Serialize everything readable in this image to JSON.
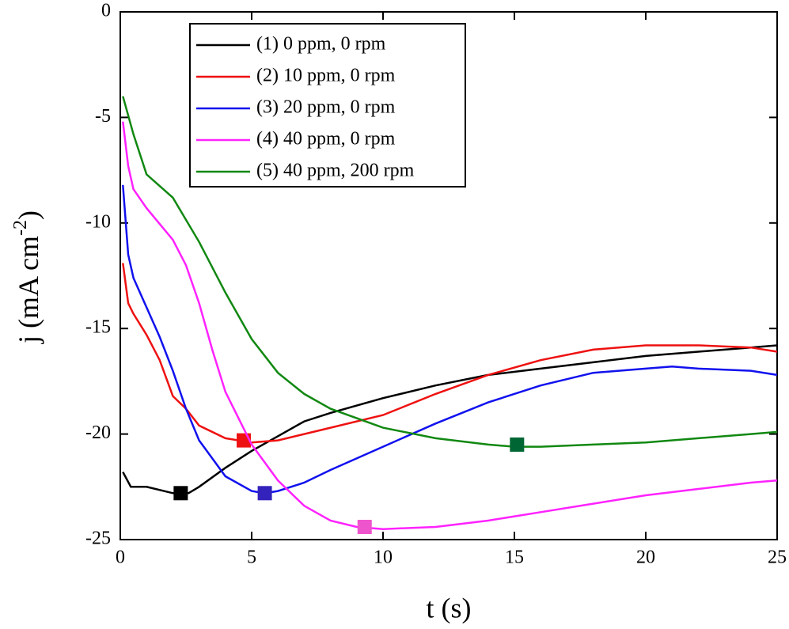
{
  "chart_data": {
    "type": "line",
    "xlabel": "t (s)",
    "ylabel_parts": [
      "j (mA cm",
      "-2",
      ")"
    ],
    "xlim": [
      0,
      25
    ],
    "ylim": [
      -25,
      0
    ],
    "xticks": [
      0,
      5,
      10,
      15,
      20,
      25
    ],
    "yticks": [
      -25,
      -20,
      -15,
      -10,
      -5,
      0
    ],
    "legend": "upper left",
    "series": [
      {
        "name": "(1) 0 ppm, 0 rpm",
        "color": "#000000",
        "x": [
          0.1,
          0.4,
          1,
          2,
          2.6,
          3,
          4,
          5,
          6,
          7,
          8,
          10,
          12,
          14,
          16,
          18,
          20,
          22,
          24,
          25
        ],
        "values": [
          -21.8,
          -22.5,
          -22.5,
          -22.8,
          -22.8,
          -22.5,
          -21.6,
          -20.8,
          -20.1,
          -19.4,
          -19.0,
          -18.3,
          -17.7,
          -17.2,
          -16.9,
          -16.6,
          -16.3,
          -16.1,
          -15.9,
          -15.8
        ],
        "marker_x": 2.3,
        "marker_y": -22.8,
        "marker_color": "#000000"
      },
      {
        "name": "(2) 10 ppm, 0 rpm",
        "color": "#ee1111",
        "x": [
          0.1,
          0.3,
          0.5,
          1,
          1.5,
          2,
          2.5,
          3,
          4,
          5,
          6,
          7,
          8,
          10,
          12,
          14,
          16,
          18,
          20,
          22,
          24,
          25
        ],
        "values": [
          -11.9,
          -13.8,
          -14.3,
          -15.3,
          -16.5,
          -18.2,
          -18.8,
          -19.6,
          -20.2,
          -20.4,
          -20.3,
          -20.0,
          -19.7,
          -19.1,
          -18.1,
          -17.2,
          -16.5,
          -16.0,
          -15.8,
          -15.8,
          -15.9,
          -16.1
        ],
        "marker_x": 4.7,
        "marker_y": -20.3,
        "marker_color": "#ee1111"
      },
      {
        "name": "(3) 20 ppm, 0 rpm",
        "color": "#1111ee",
        "x": [
          0.1,
          0.3,
          0.5,
          1,
          1.5,
          2,
          2.5,
          3,
          4,
          5,
          5.5,
          6,
          7,
          8,
          10,
          12,
          14,
          16,
          18,
          20,
          21,
          22,
          24,
          25
        ],
        "values": [
          -8.2,
          -11.5,
          -12.6,
          -14.0,
          -15.4,
          -17.0,
          -18.8,
          -20.3,
          -22.0,
          -22.7,
          -22.8,
          -22.7,
          -22.3,
          -21.7,
          -20.6,
          -19.5,
          -18.5,
          -17.7,
          -17.1,
          -16.9,
          -16.8,
          -16.9,
          -17.0,
          -17.2
        ],
        "marker_x": 5.5,
        "marker_y": -22.8,
        "marker_color": "#3322bb"
      },
      {
        "name": "(4) 40 ppm, 0 rpm",
        "color": "#ff22ff",
        "x": [
          0.1,
          0.3,
          0.5,
          1,
          2,
          2.5,
          3,
          3.5,
          4,
          5,
          6,
          7,
          8,
          9,
          10,
          12,
          14,
          16,
          18,
          20,
          22,
          24,
          25
        ],
        "values": [
          -5.2,
          -7.3,
          -8.4,
          -9.3,
          -10.8,
          -12.0,
          -13.8,
          -16.0,
          -18.0,
          -20.5,
          -22.2,
          -23.4,
          -24.1,
          -24.4,
          -24.5,
          -24.4,
          -24.1,
          -23.7,
          -23.3,
          -22.9,
          -22.6,
          -22.3,
          -22.2
        ],
        "marker_x": 9.3,
        "marker_y": -24.4,
        "marker_color": "#ee55cc"
      },
      {
        "name": "(5) 40 ppm, 200 rpm",
        "color": "#118811",
        "x": [
          0.1,
          0.5,
          1,
          2,
          3,
          4,
          5,
          6,
          7,
          8,
          10,
          12,
          14,
          15,
          16,
          18,
          20,
          22,
          24,
          25
        ],
        "values": [
          -4.0,
          -5.8,
          -7.7,
          -8.8,
          -10.9,
          -13.3,
          -15.5,
          -17.1,
          -18.1,
          -18.8,
          -19.7,
          -20.2,
          -20.5,
          -20.6,
          -20.6,
          -20.5,
          -20.4,
          -20.2,
          -20.0,
          -19.9
        ],
        "marker_x": 15.1,
        "marker_y": -20.5,
        "marker_color": "#006633"
      }
    ]
  }
}
